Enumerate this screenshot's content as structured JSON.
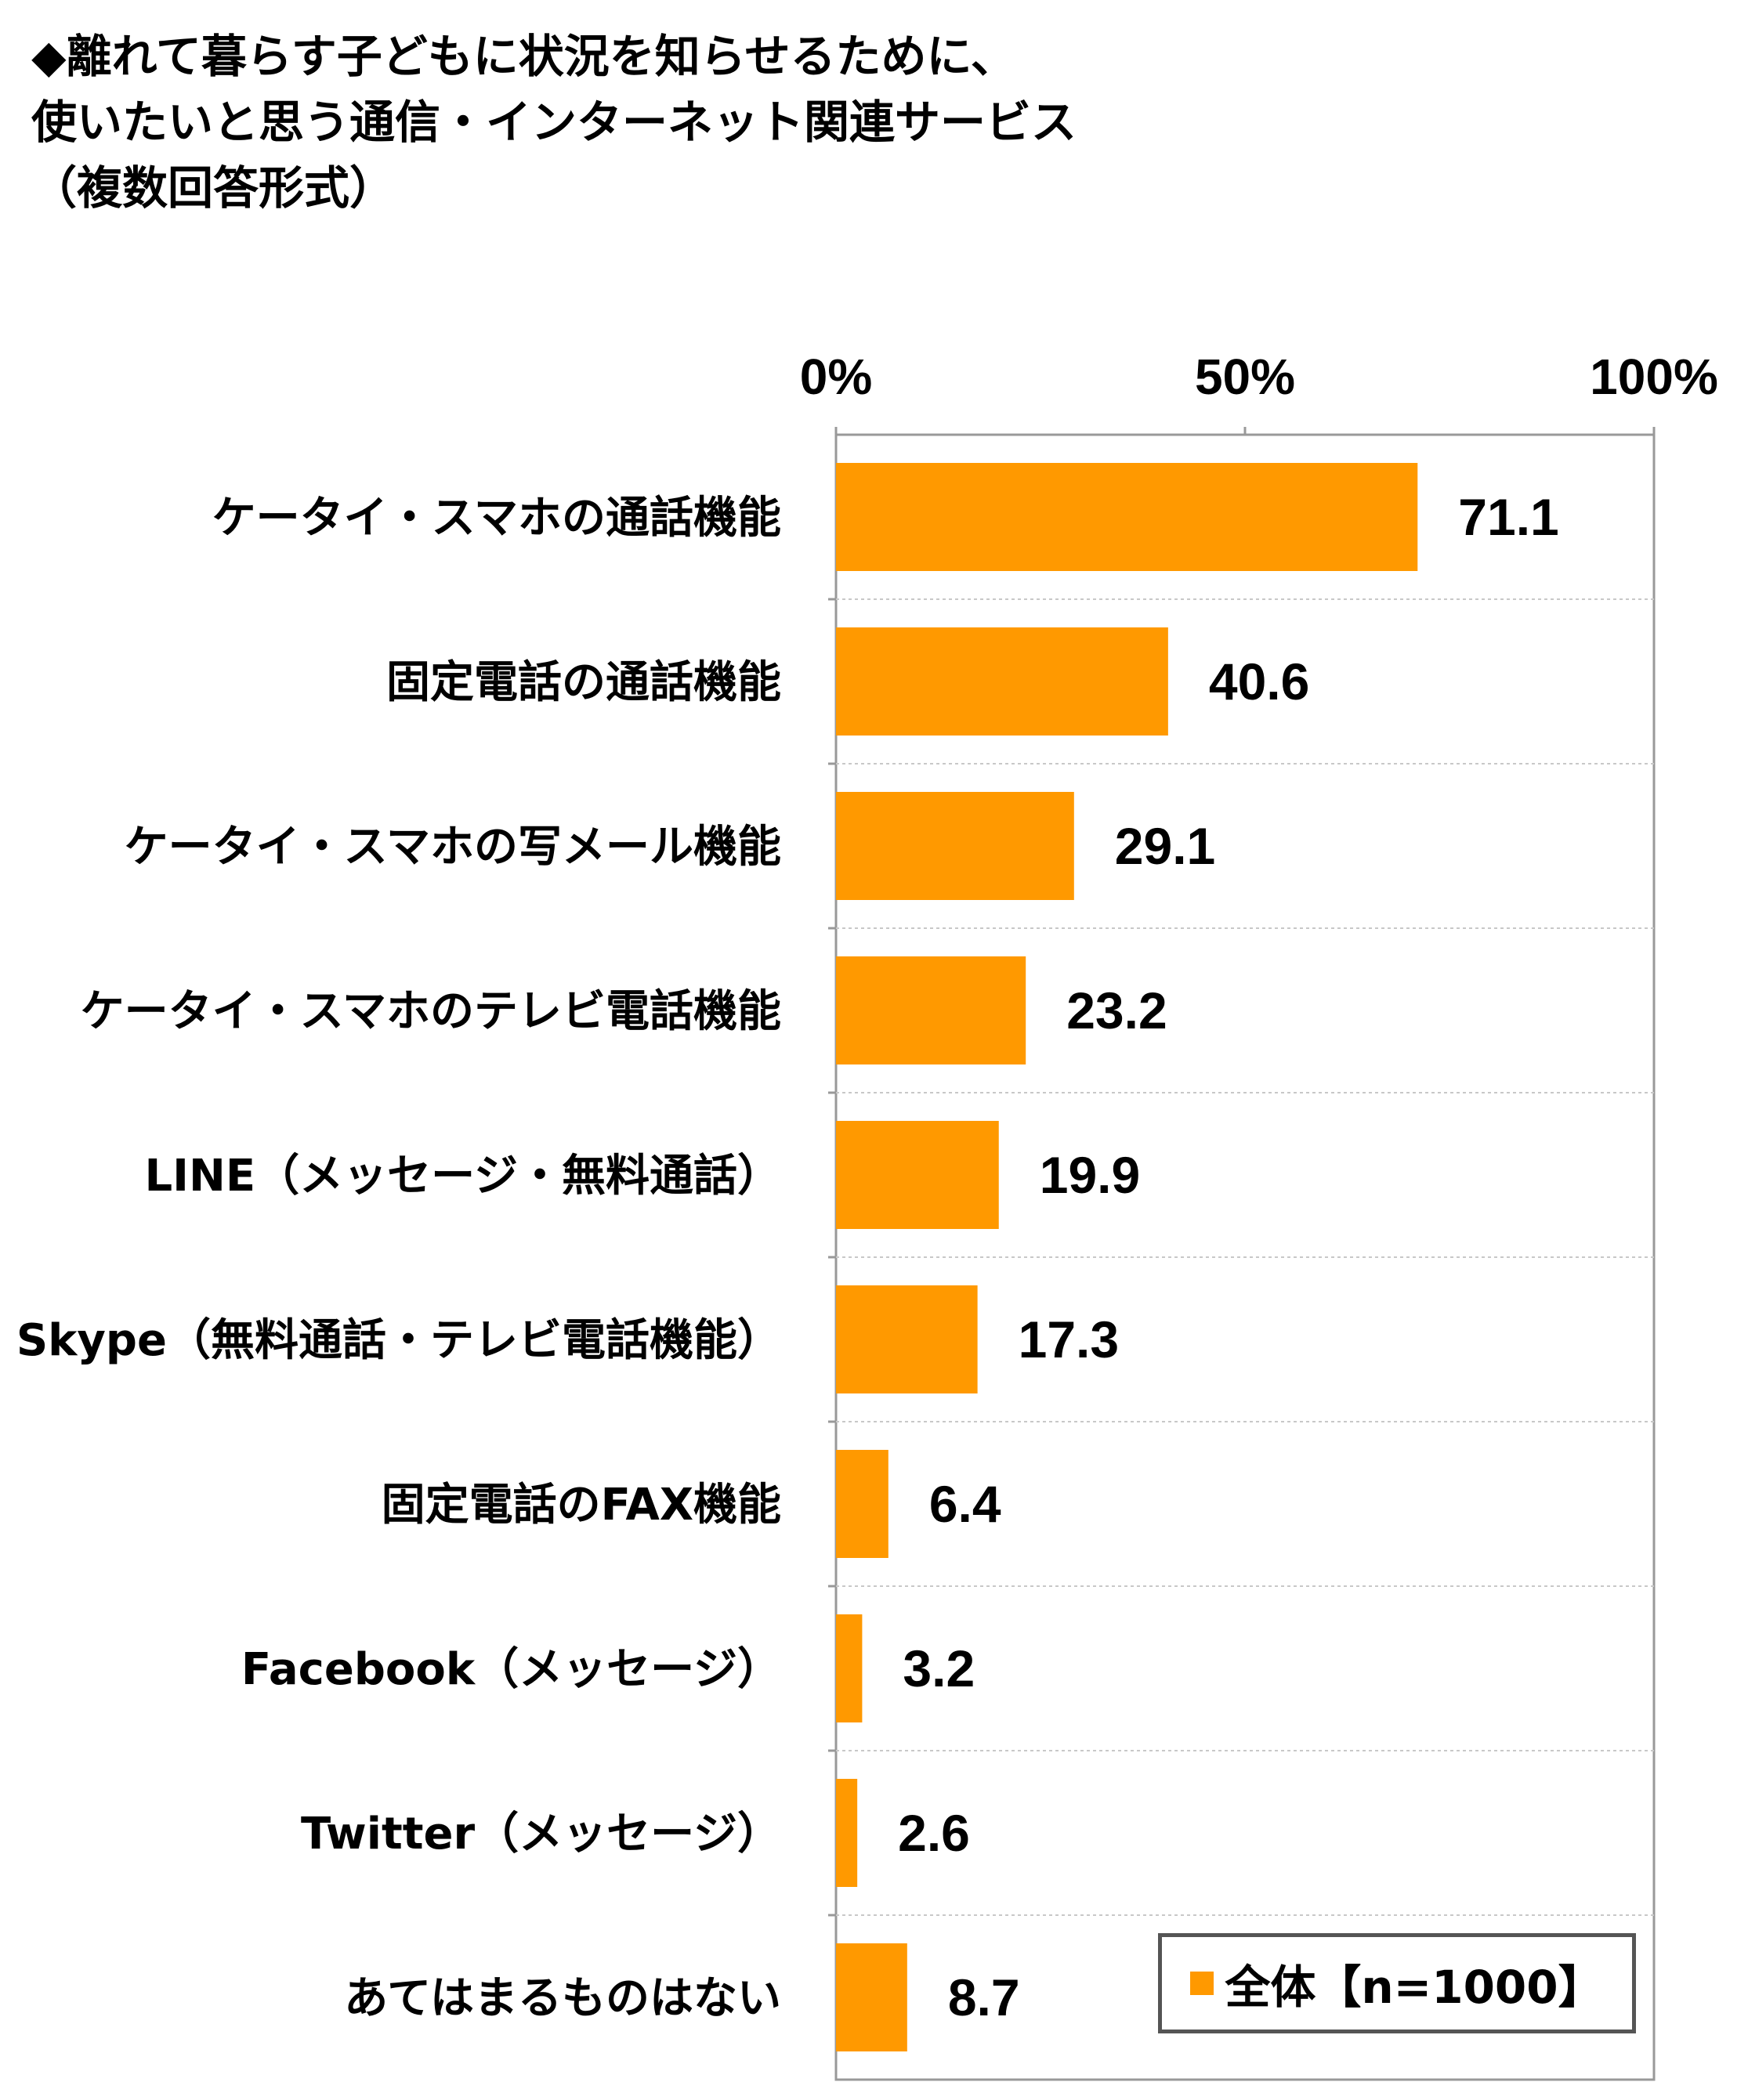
{
  "chart_data": {
    "type": "bar",
    "orientation": "horizontal",
    "title_lines": [
      "◆離れて暮らす子どもに状況を知らせるために、",
      "使いたいと思う通信・インターネット関連サービス",
      "（複数回答形式）"
    ],
    "xlim": [
      0,
      100
    ],
    "x_ticks": [
      "0%",
      "50%",
      "100%"
    ],
    "x_tick_values": [
      0,
      50,
      100
    ],
    "categories": [
      "ケータイ・スマホの通話機能",
      "固定電話の通話機能",
      "ケータイ・スマホの写メール機能",
      "ケータイ・スマホのテレビ電話機能",
      "LINE（メッセージ・無料通話）",
      "Skype（無料通話・テレビ電話機能）",
      "固定電話のFAX機能",
      "Facebook（メッセージ）",
      "Twitter（メッセージ）",
      "あてはまるものはない"
    ],
    "series": [
      {
        "name": "全体【n=1000】",
        "color": "#FF9900",
        "values": [
          71.1,
          40.6,
          29.1,
          23.2,
          19.9,
          17.3,
          6.4,
          3.2,
          2.6,
          8.7
        ],
        "labels": [
          "71.1",
          "40.6",
          "29.1",
          "23.2",
          "19.9",
          "17.3",
          "6.4",
          "3.2",
          "2.6",
          "8.7"
        ]
      }
    ],
    "grid": "horizontal dashed separators",
    "legend_position": "bottom-right"
  }
}
